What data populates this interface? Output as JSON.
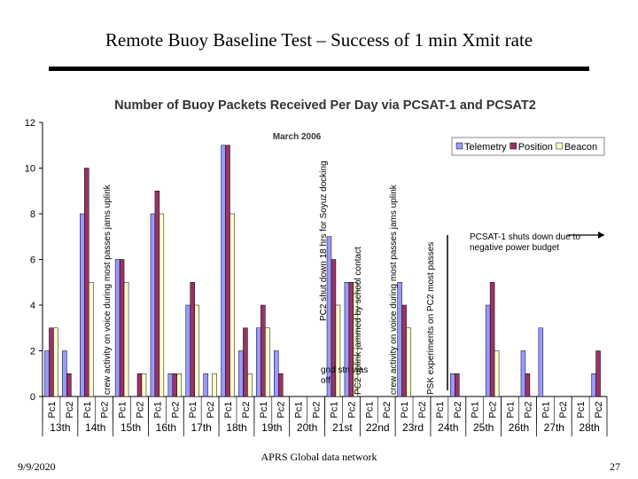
{
  "slide": {
    "title": "Remote Buoy Baseline Test – Success of 1 min Xmit rate",
    "date": "9/9/2020",
    "footer": "APRS Global data network",
    "page": "27"
  },
  "chart_data": {
    "type": "bar",
    "title": "Number of Buoy Packets Received Per Day via PCSAT-1 and PCSAT2",
    "subtitle": "March 2006",
    "groups": [
      "13th",
      "14th",
      "15th",
      "16th",
      "17th",
      "18th",
      "19th",
      "20th",
      "21st",
      "22nd",
      "23rd",
      "24th",
      "25th",
      "26th",
      "27th",
      "28th"
    ],
    "categories": [
      "Pc1",
      "Pc2",
      "Pc1",
      "Pc2",
      "Pc1",
      "Pc2",
      "Pc1",
      "Pc2",
      "Pc1",
      "Pc2",
      "Pc1",
      "Pc2",
      "Pc1",
      "Pc2",
      "Pc1",
      "Pc2",
      "Pc1",
      "Pc2",
      "Pc1",
      "Pc2",
      "Pc1",
      "Pc2",
      "Pc1",
      "Pc2",
      "Pc1",
      "Pc2",
      "Pc1",
      "Pc2",
      "Pc1",
      "Pc2",
      "Pc1",
      "Pc2"
    ],
    "series": [
      {
        "name": "Telemetry",
        "color": "#9999ff",
        "values": [
          2,
          2,
          8,
          0,
          6,
          0,
          8,
          1,
          4,
          1,
          11,
          2,
          3,
          2,
          0,
          0,
          7,
          5,
          0,
          0,
          5,
          0,
          0,
          1,
          0,
          4,
          0,
          2,
          3,
          0,
          0,
          1
        ]
      },
      {
        "name": "Position",
        "color": "#993366",
        "values": [
          3,
          1,
          10,
          0,
          6,
          1,
          9,
          1,
          5,
          0,
          11,
          3,
          4,
          1,
          0,
          0,
          6,
          5,
          0,
          0,
          4,
          0,
          0,
          1,
          0,
          5,
          0,
          1,
          0,
          0,
          0,
          2
        ]
      },
      {
        "name": "Beacon",
        "color": "#ffffcc",
        "values": [
          3,
          0,
          5,
          0,
          5,
          1,
          8,
          1,
          4,
          1,
          8,
          1,
          3,
          0,
          0,
          0,
          4,
          5,
          0,
          0,
          3,
          0,
          0,
          0,
          0,
          2,
          0,
          0,
          0,
          0,
          0,
          0
        ]
      }
    ],
    "ylim": [
      0,
      12
    ],
    "yticks": [
      0,
      2,
      4,
      6,
      8,
      10,
      12
    ],
    "grid": false,
    "legend": "upper right",
    "annotations": [
      "crew activity on voice during most passes jams uplink",
      "PC2 shut down 18 hrs for Soyuz docking",
      "gnd stn was off",
      "PC2 uplink jammed by school contact",
      "crew activity on voice during most passes jams uplink",
      "PSK experiments on PC2 most passes",
      "PCSAT-1 shuts down due to negative power budget"
    ]
  }
}
